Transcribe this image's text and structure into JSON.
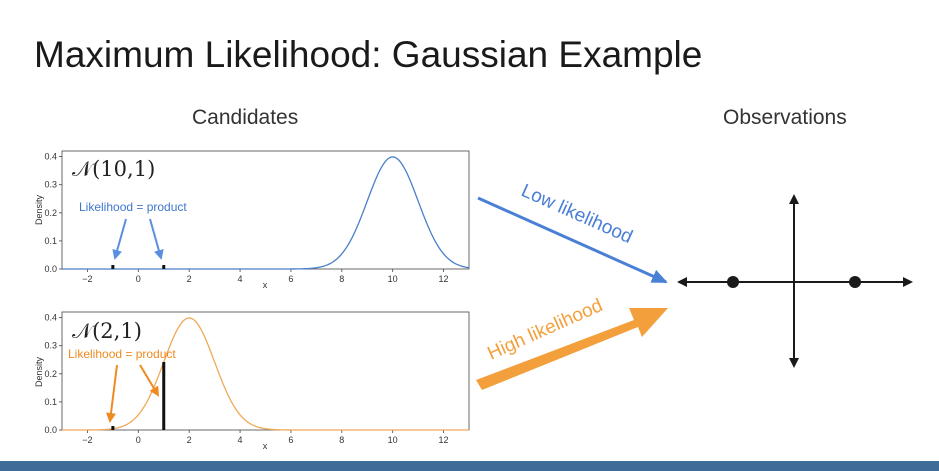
{
  "slide": {
    "title": "Maximum Likelihood: Gaussian Example",
    "candidates_heading": "Candidates",
    "observations_heading": "Observations"
  },
  "plots": [
    {
      "id": "top",
      "label": "𝒩(10,1)",
      "annotation": "Likelihood = product",
      "color": "#4a7fc9",
      "annotation_color": "#3f77cf",
      "mean": 10,
      "sd": 1,
      "observations": [
        -1,
        1
      ],
      "xlabel": "x",
      "ylabel": "Density",
      "xlim": [
        -3,
        13
      ],
      "ylim": [
        0,
        0.42
      ],
      "xticks": [
        "−2",
        "0",
        "2",
        "4",
        "6",
        "8",
        "10",
        "12"
      ],
      "xtick_values": [
        -2,
        0,
        2,
        4,
        6,
        8,
        10,
        12
      ],
      "yticks": [
        "0.0",
        "0.1",
        "0.2",
        "0.3",
        "0.4"
      ],
      "ytick_values": [
        0,
        0.1,
        0.2,
        0.3,
        0.4
      ]
    },
    {
      "id": "bottom",
      "label": "𝒩(2,1)",
      "annotation": "Likelihood = product",
      "color": "#f0a858",
      "annotation_color": "#ef8a1f",
      "mean": 2,
      "sd": 1,
      "observations": [
        -1,
        1
      ],
      "xlabel": "x",
      "ylabel": "Density",
      "xlim": [
        -3,
        13
      ],
      "ylim": [
        0,
        0.42
      ],
      "xticks": [
        "−2",
        "0",
        "2",
        "4",
        "6",
        "8",
        "10",
        "12"
      ],
      "xtick_values": [
        -2,
        0,
        2,
        4,
        6,
        8,
        10,
        12
      ],
      "yticks": [
        "0.0",
        "0.1",
        "0.2",
        "0.3",
        "0.4"
      ],
      "ytick_values": [
        0,
        0.1,
        0.2,
        0.3,
        0.4
      ]
    }
  ],
  "arrows": {
    "low": {
      "label": "Low likelihood",
      "color": "#4a7fd6"
    },
    "high": {
      "label": "High likelihood",
      "color": "#f3a03c"
    }
  },
  "observations_plot": {
    "points": [
      -1,
      1
    ],
    "color": "#1a1a1a"
  },
  "chart_data": [
    {
      "type": "line",
      "title": "",
      "legend_label": "𝒩(10,1)",
      "xlabel": "x",
      "ylabel": "Density",
      "xlim": [
        -3,
        13
      ],
      "ylim": [
        0,
        0.42
      ],
      "series": [
        {
          "values": "normal pdf, mean 10, sd 1"
        }
      ],
      "markers_x": [
        -1,
        1
      ]
    },
    {
      "type": "line",
      "title": "",
      "legend_label": "𝒩(2,1)",
      "xlabel": "x",
      "ylabel": "Density",
      "xlim": [
        -3,
        13
      ],
      "ylim": [
        0,
        0.42
      ],
      "series": [
        {
          "values": "normal pdf, mean 2, sd 1"
        }
      ],
      "markers_x": [
        -1,
        1
      ]
    }
  ]
}
